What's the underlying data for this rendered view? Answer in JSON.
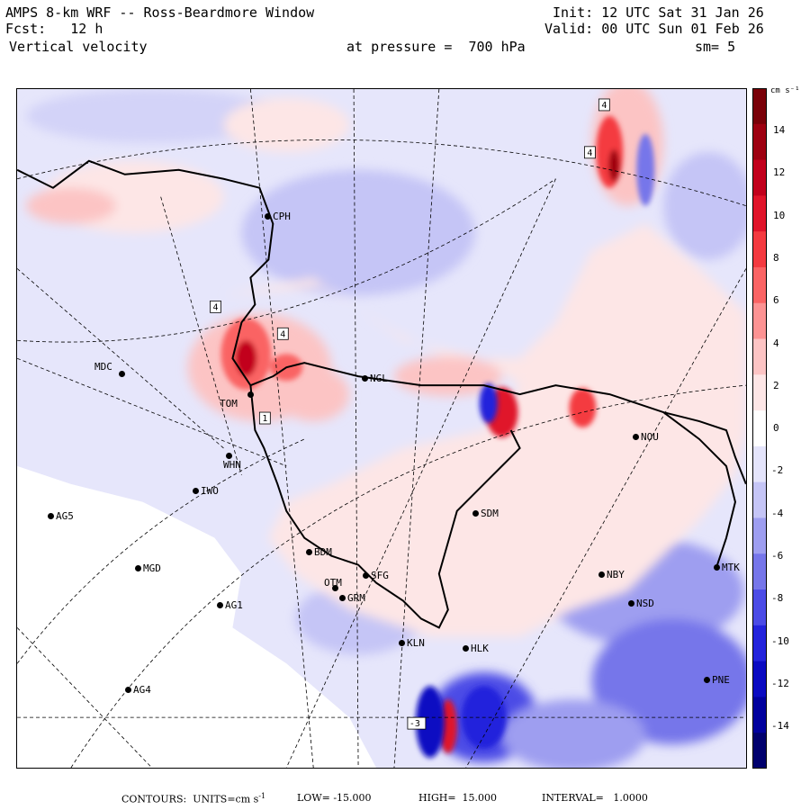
{
  "header": {
    "title": "AMPS 8-km WRF -- Ross-Beardmore Window",
    "fcst": "Fcst:   12 h",
    "field": "Vertical velocity",
    "init": "Init: 12 UTC Sat 31 Jan 26",
    "valid": "Valid: 00 UTC Sun 01 Feb 26",
    "pressure": "at pressure =  700 hPa",
    "smooth": "sm= 5"
  },
  "colorbar": {
    "units": "cm s⁻¹",
    "ticks": [
      "14",
      "12",
      "10",
      "8",
      "6",
      "4",
      "2",
      "0",
      "-2",
      "-4",
      "-6",
      "-8",
      "-10",
      "-12",
      "-14"
    ],
    "colors": [
      "#7a0008",
      "#9e0010",
      "#c2001c",
      "#e0142a",
      "#f43a40",
      "#fa6464",
      "#fc9393",
      "#fcc4c4",
      "#fde6e6",
      "#ffffff",
      "#e4e4fb",
      "#c5c5f6",
      "#9e9ef0",
      "#7676ea",
      "#4b4be6",
      "#2323dc",
      "#0a0ac2",
      "#00009e",
      "#00006e"
    ]
  },
  "stations": [
    {
      "id": "CPH"
    },
    {
      "id": "MDC"
    },
    {
      "id": "NGL"
    },
    {
      "id": "TOM"
    },
    {
      "id": "WHN"
    },
    {
      "id": "IWO"
    },
    {
      "id": "AG5"
    },
    {
      "id": "SDM"
    },
    {
      "id": "MGD"
    },
    {
      "id": "BDM"
    },
    {
      "id": "SFG"
    },
    {
      "id": "OTM"
    },
    {
      "id": "GRM"
    },
    {
      "id": "AG1"
    },
    {
      "id": "NBY"
    },
    {
      "id": "MTK"
    },
    {
      "id": "NSD"
    },
    {
      "id": "KLN"
    },
    {
      "id": "HLK"
    },
    {
      "id": "AG4"
    },
    {
      "id": "PNE"
    },
    {
      "id": "NOU"
    }
  ],
  "contour_labels": [
    "4",
    "4",
    "4",
    "4",
    "1",
    "-3"
  ],
  "footer": {
    "contours": "CONTOURS:  UNITS=cm s",
    "units_exp": "-1",
    "low": "LOW= -15.000",
    "high": "HIGH=  15.000",
    "interval": "INTERVAL=   1.0000"
  }
}
